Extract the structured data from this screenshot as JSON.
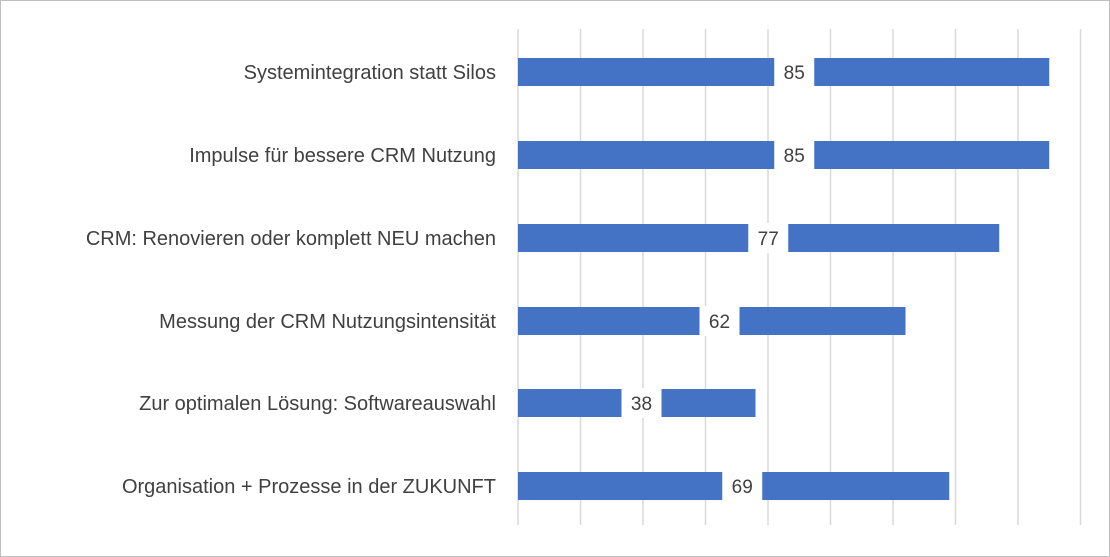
{
  "chart_data": {
    "type": "bar",
    "orientation": "horizontal",
    "categories": [
      "Systemintegration statt Silos",
      "Impulse für bessere CRM Nutzung",
      "CRM: Renovieren oder komplett NEU machen",
      "Messung der CRM Nutzungsintensität",
      "Zur optimalen Lösung: Softwareauswahl",
      "Organisation + Prozesse in der ZUKUNFT"
    ],
    "values": [
      85,
      85,
      77,
      62,
      38,
      69
    ],
    "xlim": [
      0,
      90
    ],
    "grid": true,
    "legend": "none",
    "bar_color": "#4472c4",
    "gridline_color": "#d9d9d9"
  }
}
